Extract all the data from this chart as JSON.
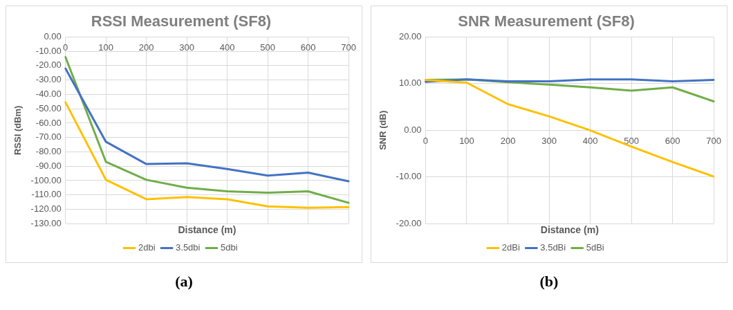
{
  "chart_data": [
    {
      "type": "line",
      "title": "RSSI Measurement (SF8)",
      "xlabel": "Distance (m)",
      "ylabel": "RSSI (dBm)",
      "annotations": [
        "(a)"
      ],
      "categories": [
        "0",
        "100",
        "200",
        "300",
        "400",
        "500",
        "600",
        "700"
      ],
      "series": [
        {
          "name": "2dbi",
          "color": "#ffc000",
          "values": [
            -45.5,
            -99.5,
            -113,
            -111.5,
            -113,
            -118,
            -119,
            -118.5
          ]
        },
        {
          "name": "3.5dbi",
          "color": "#4472c4",
          "values": [
            -22,
            -73,
            -88.5,
            -88,
            -92,
            -96.5,
            -94.5,
            -100.5
          ]
        },
        {
          "name": "5dbi",
          "color": "#70ad47",
          "values": [
            -14,
            -87,
            -99.5,
            -105,
            -107.5,
            -108.5,
            -107.5,
            -115.5
          ]
        }
      ],
      "ylim": [
        -130,
        0
      ],
      "yticks": [
        {
          "value": 0,
          "label": "0.00"
        },
        {
          "value": -10,
          "label": "-10.00"
        },
        {
          "value": -20,
          "label": "-20.00"
        },
        {
          "value": -30,
          "label": "-30.00"
        },
        {
          "value": -40,
          "label": "-40.00"
        },
        {
          "value": -50,
          "label": "-50.00"
        },
        {
          "value": -60,
          "label": "-60.00"
        },
        {
          "value": -70,
          "label": "-70.00"
        },
        {
          "value": -80,
          "label": "-80.00"
        },
        {
          "value": -90,
          "label": "-90.00"
        },
        {
          "value": -100,
          "label": "-100.00"
        },
        {
          "value": -110,
          "label": "-110.00"
        },
        {
          "value": -120,
          "label": "-120.00"
        },
        {
          "value": -130,
          "label": "-130.00"
        }
      ],
      "grid": true,
      "legend": "bottom",
      "marker": "none",
      "line_style": "solid"
    },
    {
      "type": "line",
      "title": "SNR Measurement (SF8)",
      "xlabel": "Distance (m)",
      "ylabel": "SNR (dB)",
      "annotations": [
        "(b)"
      ],
      "categories": [
        "0",
        "100",
        "200",
        "300",
        "400",
        "500",
        "600",
        "700"
      ],
      "series": [
        {
          "name": "2dBi",
          "color": "#ffc000",
          "values": [
            10.8,
            10.2,
            5.6,
            3,
            0,
            -3.5,
            -6.8,
            -9.9
          ]
        },
        {
          "name": "3.5dBi",
          "color": "#4472c4",
          "values": [
            10.4,
            10.9,
            10.5,
            10.5,
            10.9,
            10.9,
            10.5,
            10.8
          ]
        },
        {
          "name": "5dBi",
          "color": "#70ad47",
          "values": [
            10.8,
            10.9,
            10.3,
            9.8,
            9.2,
            8.5,
            9.2,
            6.2
          ]
        }
      ],
      "ylim": [
        -20,
        20
      ],
      "yticks": [
        {
          "value": 20,
          "label": "20.00"
        },
        {
          "value": 10,
          "label": "10.00"
        },
        {
          "value": 0,
          "label": "0.00"
        },
        {
          "value": -10,
          "label": "-10.00"
        },
        {
          "value": -20,
          "label": "-20.00"
        }
      ],
      "grid": true,
      "legend": "bottom",
      "marker": "none",
      "line_style": "solid"
    }
  ]
}
